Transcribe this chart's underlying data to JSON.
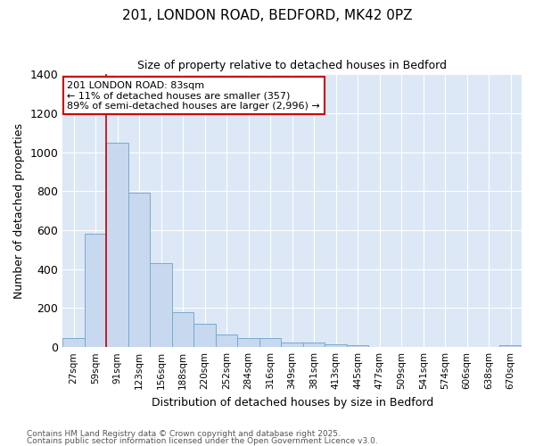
{
  "title1": "201, LONDON ROAD, BEDFORD, MK42 0PZ",
  "title2": "Size of property relative to detached houses in Bedford",
  "xlabel": "Distribution of detached houses by size in Bedford",
  "ylabel": "Number of detached properties",
  "bar_labels": [
    "27sqm",
    "59sqm",
    "91sqm",
    "123sqm",
    "156sqm",
    "188sqm",
    "220sqm",
    "252sqm",
    "284sqm",
    "316sqm",
    "349sqm",
    "381sqm",
    "413sqm",
    "445sqm",
    "477sqm",
    "509sqm",
    "541sqm",
    "574sqm",
    "606sqm",
    "638sqm",
    "670sqm"
  ],
  "bar_values": [
    48,
    583,
    1047,
    793,
    430,
    180,
    120,
    65,
    45,
    46,
    22,
    22,
    14,
    8,
    0,
    0,
    0,
    0,
    0,
    0,
    10
  ],
  "bar_color": "#c8d8ee",
  "bar_edge_color": "#7aaace",
  "background_color": "#dce8f5",
  "grid_color": "#ffffff",
  "ylim": [
    0,
    1400
  ],
  "yticks": [
    0,
    200,
    400,
    600,
    800,
    1000,
    1200,
    1400
  ],
  "vline_x": 1.5,
  "vline_color": "#cc0000",
  "annotation_text": "201 LONDON ROAD: 83sqm\n← 11% of detached houses are smaller (357)\n89% of semi-detached houses are larger (2,996) →",
  "footer1": "Contains HM Land Registry data © Crown copyright and database right 2025.",
  "footer2": "Contains public sector information licensed under the Open Government Licence v3.0."
}
